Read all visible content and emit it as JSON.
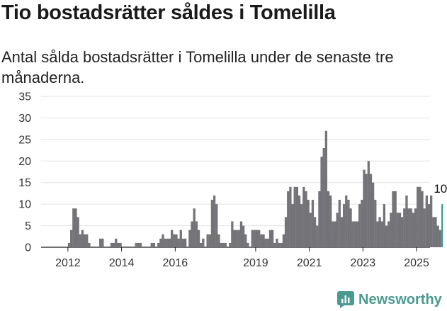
{
  "title": "Tio bostadsrätter såldes i Tomelilla",
  "subtitle": "Antal sålda bostadsrätter i Tomelilla under de senaste tre månaderna.",
  "brand": {
    "name": "Newsworthy",
    "icon": "bar-chart-logo-icon"
  },
  "colors": {
    "bar": "#747378",
    "highlight": "#2e9b92",
    "grid": "#e2e2e2",
    "brand": "#4a9a91"
  },
  "chart_data": {
    "type": "bar",
    "title": "Tio bostadsrätter såldes i Tomelilla",
    "subtitle": "Antal sålda bostadsrätter i Tomelilla under de senaste tre månaderna.",
    "xlabel": "",
    "ylabel": "",
    "ylim": [
      0,
      35
    ],
    "yticks": [
      0,
      5,
      10,
      15,
      20,
      25,
      30,
      35
    ],
    "xticks": [
      {
        "label": "2012",
        "x": 2012
      },
      {
        "label": "2014",
        "x": 2014
      },
      {
        "label": "2016",
        "x": 2016
      },
      {
        "label": "2019",
        "x": 2019
      },
      {
        "label": "2021",
        "x": 2021
      },
      {
        "label": "2023",
        "x": 2023
      },
      {
        "label": "2025",
        "x": 2025
      }
    ],
    "grid": true,
    "x_start": 2011.0,
    "x_end": 2025.5,
    "series": [
      {
        "frequency": "monthly",
        "start": "2012-01",
        "values": [
          1,
          4,
          9,
          9,
          7,
          3,
          4,
          3,
          3,
          1,
          0,
          0,
          0,
          0,
          2,
          2,
          0,
          0,
          0,
          1,
          1,
          2,
          1,
          1,
          0,
          0,
          0,
          0,
          0,
          0,
          1,
          1,
          1,
          0,
          0,
          0,
          0,
          1,
          1,
          0,
          1,
          2,
          3,
          2,
          2,
          2,
          4,
          3,
          3,
          2,
          4,
          2,
          2,
          0,
          4,
          6,
          9,
          6,
          4,
          1,
          2,
          0,
          3,
          3,
          11,
          12,
          10,
          3,
          1,
          1,
          1,
          0,
          1,
          6,
          4,
          4,
          4,
          6,
          5,
          3,
          1,
          0,
          4,
          4,
          4,
          4,
          3,
          3,
          2,
          2,
          4,
          4,
          1,
          2,
          1,
          1,
          3,
          7,
          13,
          14,
          10,
          14,
          14,
          12,
          10,
          14,
          13,
          11,
          8,
          11,
          7,
          5,
          13,
          21,
          23,
          27,
          13,
          12,
          6,
          6,
          8,
          11,
          7,
          10,
          12,
          11,
          9,
          6,
          6,
          6,
          10,
          11,
          18,
          17,
          20,
          17,
          15,
          11,
          6,
          7,
          6,
          10,
          5,
          6,
          8,
          13,
          13,
          8,
          8,
          7,
          9,
          12,
          9,
          9,
          8,
          9,
          14,
          14,
          13,
          9,
          12,
          10,
          12,
          7,
          7,
          5,
          4,
          10
        ],
        "last_label": "10",
        "highlight_last": true
      }
    ]
  }
}
